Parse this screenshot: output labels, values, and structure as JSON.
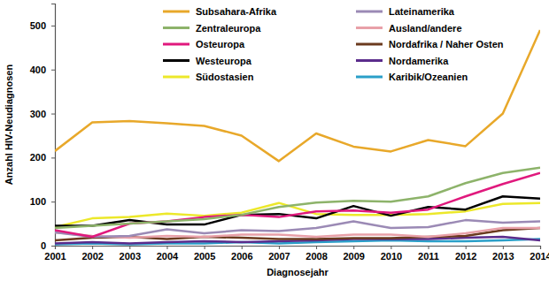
{
  "chart_data": {
    "type": "line",
    "x_label": "Diagnosejahr",
    "y_label": "Anzahl HIV-Neudiagnosen",
    "x": [
      2001,
      2002,
      2003,
      2004,
      2005,
      2006,
      2007,
      2008,
      2009,
      2010,
      2011,
      2012,
      2013,
      2014
    ],
    "xlim": [
      2001,
      2014
    ],
    "xticks": [
      2001,
      2002,
      2003,
      2004,
      2005,
      2006,
      2007,
      2008,
      2009,
      2010,
      2011,
      2012,
      2013,
      2014
    ],
    "ylim": [
      0,
      550
    ],
    "yticks": [
      0,
      100,
      200,
      300,
      400,
      500
    ],
    "grid": false,
    "legend": "top",
    "series": [
      {
        "name": "Subsahara-Afrika",
        "color": "#e8a82a",
        "values": [
          215,
          280,
          283,
          278,
          272,
          250,
          192,
          255,
          225,
          214,
          240,
          226,
          300,
          490
        ]
      },
      {
        "name": "Zentraleuropa",
        "color": "#8db36a",
        "values": [
          40,
          45,
          50,
          55,
          60,
          70,
          88,
          98,
          102,
          100,
          112,
          142,
          165,
          177
        ]
      },
      {
        "name": "Osteuropa",
        "color": "#e0197d",
        "values": [
          35,
          20,
          50,
          55,
          65,
          70,
          65,
          78,
          80,
          75,
          82,
          112,
          140,
          165
        ]
      },
      {
        "name": "Westeuropa",
        "color": "#000000",
        "values": [
          45,
          45,
          58,
          48,
          48,
          70,
          72,
          62,
          90,
          68,
          88,
          82,
          112,
          107
        ]
      },
      {
        "name": "Südostasien",
        "color": "#ece82a",
        "values": [
          42,
          62,
          65,
          73,
          68,
          75,
          97,
          72,
          70,
          70,
          72,
          78,
          95,
          97
        ]
      },
      {
        "name": "Lateinamerika",
        "color": "#9b8ab5",
        "values": [
          30,
          20,
          22,
          37,
          28,
          35,
          33,
          40,
          55,
          40,
          42,
          58,
          52,
          55
        ]
      },
      {
        "name": "Ausland/andere",
        "color": "#e8a0a8",
        "values": [
          30,
          22,
          18,
          22,
          20,
          25,
          25,
          20,
          25,
          25,
          20,
          28,
          40,
          40
        ]
      },
      {
        "name": "Nordafrika / Naher Osten",
        "color": "#6b3a1e",
        "values": [
          12,
          18,
          20,
          15,
          20,
          18,
          15,
          15,
          17,
          17,
          20,
          22,
          35,
          40
        ]
      },
      {
        "name": "Nordamerika",
        "color": "#5b2c8c",
        "values": [
          5,
          8,
          5,
          8,
          10,
          8,
          10,
          12,
          15,
          15,
          15,
          18,
          20,
          12
        ]
      },
      {
        "name": "Karibik/Ozeanien",
        "color": "#2a9fc8",
        "values": [
          3,
          5,
          3,
          5,
          5,
          8,
          5,
          8,
          10,
          12,
          10,
          10,
          12,
          15
        ]
      }
    ]
  }
}
